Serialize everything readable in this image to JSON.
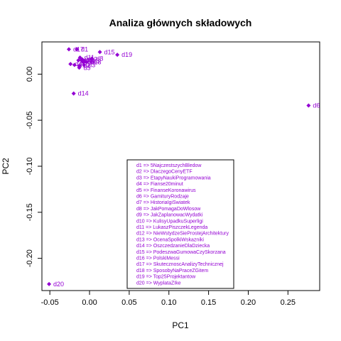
{
  "chart_data": {
    "type": "scatter",
    "title": "Analiza głównych składowych",
    "xlabel": "PC1",
    "ylabel": "PC2",
    "xlim": [
      -0.06,
      0.29
    ],
    "ylim": [
      -0.235,
      0.035
    ],
    "xticks": [
      -0.05,
      0.0,
      0.05,
      0.1,
      0.15,
      0.2,
      0.25
    ],
    "xtick_labels": [
      "-0.05",
      "0.00",
      "0.05",
      "0.10",
      "0.15",
      "0.20",
      "0.25"
    ],
    "yticks": [
      0.0,
      -0.05,
      -0.1,
      -0.15,
      -0.2
    ],
    "ytick_labels": [
      "0.00",
      "-0.05",
      "-0.10",
      "-0.15",
      "-0.20"
    ],
    "point_color": "#9400d3",
    "points": [
      {
        "label": "d1",
        "x": -0.016,
        "y": 0.027
      },
      {
        "label": "d2",
        "x": -0.013,
        "y": 0.009
      },
      {
        "label": "d3",
        "x": -0.007,
        "y": 0.01
      },
      {
        "label": "d4",
        "x": -0.024,
        "y": 0.011
      },
      {
        "label": "d5",
        "x": -0.013,
        "y": 0.007
      },
      {
        "label": "d6",
        "x": 0.276,
        "y": -0.034
      },
      {
        "label": "d7",
        "x": -0.01,
        "y": 0.015
      },
      {
        "label": "d8",
        "x": 0.003,
        "y": 0.017
      },
      {
        "label": "d9",
        "x": -0.008,
        "y": 0.013
      },
      {
        "label": "d10",
        "x": -0.019,
        "y": 0.01
      },
      {
        "label": "d11",
        "x": -0.012,
        "y": 0.018
      },
      {
        "label": "d12",
        "x": -0.009,
        "y": 0.016
      },
      {
        "label": "d13",
        "x": -0.006,
        "y": 0.014
      },
      {
        "label": "d14",
        "x": -0.02,
        "y": -0.021
      },
      {
        "label": "d15",
        "x": 0.013,
        "y": 0.024
      },
      {
        "label": "d16",
        "x": -0.014,
        "y": 0.015
      },
      {
        "label": "d17",
        "x": -0.026,
        "y": 0.027
      },
      {
        "label": "d18",
        "x": -0.004,
        "y": 0.013
      },
      {
        "label": "d19",
        "x": 0.035,
        "y": 0.021
      },
      {
        "label": "d20",
        "x": -0.051,
        "y": -0.228
      }
    ],
    "legend": {
      "placement": "bottom-center",
      "entries": [
        "d1 => 5NajczestszychBledow",
        "d2 => DlaczegoCenyETF",
        "d3 => EtapyNaukiProgramowania",
        "d4 => Fianse20minut",
        "d5 => FinanseKoronawirus",
        "d6 => GamituryRodzaje",
        "d7 => HistoriaIgiSwiatek",
        "d8 => JakPomagaDoWlosow",
        "d9 => JakZaplanowacWydatki",
        "d10 => KulisyUpadkuSuperligi",
        "d11 => LukaszPiszczekLegenda",
        "d12 => NieWstydzeSieProstejArchitektury",
        "d13 => OcenaSpolkiWskazniki",
        "d14 => OszczedzanieDlaDziecka",
        "d15 => PodeszwaGumowaCzySkorzana",
        "d16 => PolskiMessi",
        "d17 => SkutecznoscAnalizyTechnicznej",
        "d18 => SposobyNaPraceZGitem",
        "d19 => Top25Projektantow",
        "d20 => WyplataZIke"
      ]
    }
  }
}
